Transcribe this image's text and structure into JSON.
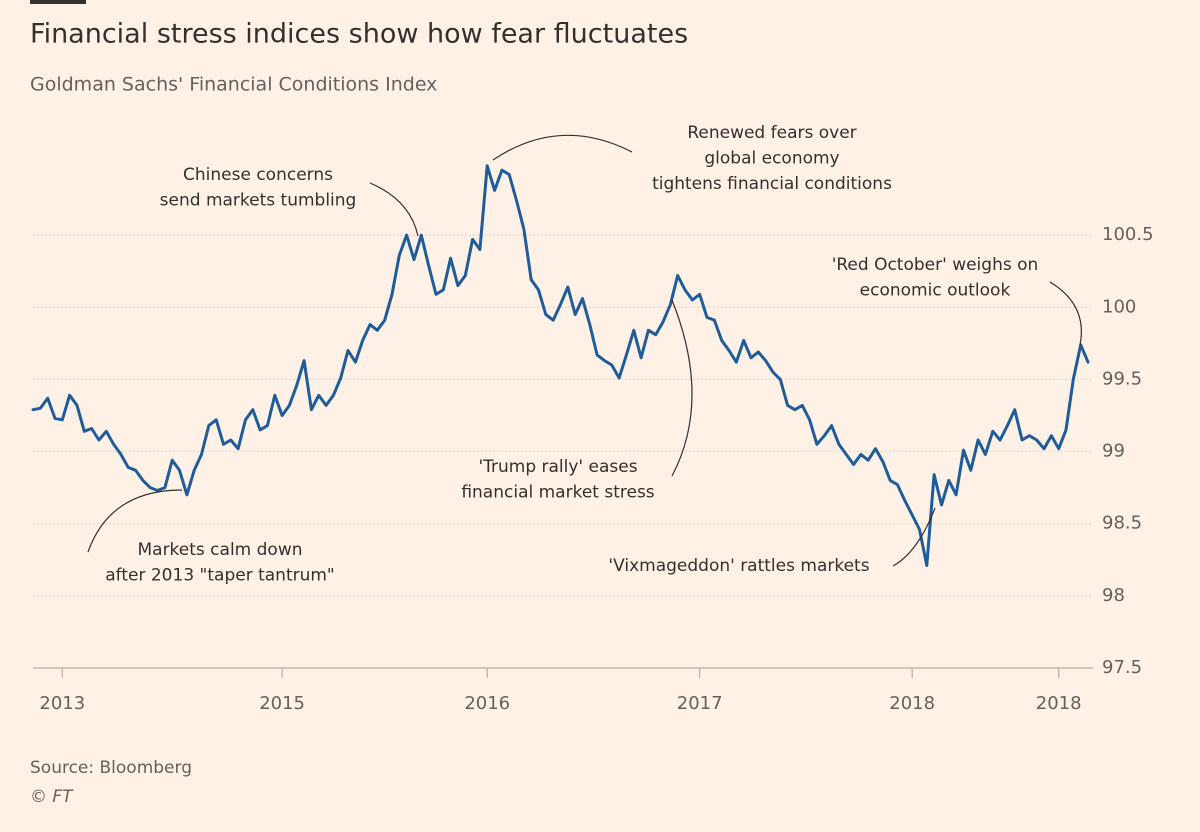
{
  "chart_data": {
    "type": "line",
    "title": "Financial stress indices show how fear fluctuates",
    "subtitle": "Goldman Sachs' Financial Conditions Index",
    "source": "Source: Bloomberg",
    "credit": "© FT",
    "color": "#1f5c99",
    "grid": true,
    "ylim": [
      97.5,
      101.05
    ],
    "yticks": [
      97.5,
      98,
      98.5,
      99,
      99.5,
      100,
      100.5
    ],
    "xlim": [
      0,
      144
    ],
    "xticks": [
      {
        "value": 4,
        "label": "2013"
      },
      {
        "value": 34,
        "label": "2015"
      },
      {
        "value": 62,
        "label": "2016"
      },
      {
        "value": 91,
        "label": "2017"
      },
      {
        "value": 120,
        "label": "2018"
      },
      {
        "value": 140,
        "label": "2018"
      }
    ],
    "values": [
      99.29,
      99.3,
      99.37,
      99.23,
      99.22,
      99.39,
      99.32,
      99.14,
      99.16,
      99.08,
      99.14,
      99.05,
      98.98,
      98.89,
      98.87,
      98.8,
      98.75,
      98.73,
      98.75,
      98.94,
      98.87,
      98.7,
      98.87,
      98.98,
      99.18,
      99.22,
      99.05,
      99.08,
      99.02,
      99.22,
      99.29,
      99.15,
      99.18,
      99.39,
      99.25,
      99.32,
      99.46,
      99.63,
      99.29,
      99.39,
      99.32,
      99.39,
      99.51,
      99.7,
      99.62,
      99.77,
      99.88,
      99.84,
      99.91,
      100.09,
      100.36,
      100.5,
      100.33,
      100.5,
      100.29,
      100.09,
      100.12,
      100.34,
      100.15,
      100.22,
      100.47,
      100.4,
      100.98,
      100.81,
      100.95,
      100.92,
      100.74,
      100.54,
      100.19,
      100.12,
      99.95,
      99.91,
      100.02,
      100.14,
      99.95,
      100.06,
      99.88,
      99.67,
      99.63,
      99.6,
      99.51,
      99.67,
      99.84,
      99.65,
      99.84,
      99.81,
      99.9,
      100.02,
      100.22,
      100.12,
      100.05,
      100.09,
      99.93,
      99.91,
      99.77,
      99.7,
      99.62,
      99.77,
      99.65,
      99.69,
      99.63,
      99.55,
      99.5,
      99.32,
      99.29,
      99.32,
      99.22,
      99.05,
      99.11,
      99.18,
      99.05,
      98.98,
      98.91,
      98.98,
      98.94,
      99.02,
      98.93,
      98.8,
      98.77,
      98.66,
      98.56,
      98.46,
      98.21,
      98.84,
      98.63,
      98.8,
      98.7,
      99.01,
      98.87,
      99.08,
      98.98,
      99.14,
      99.08,
      99.18,
      99.29,
      99.08,
      99.11,
      99.08,
      99.02,
      99.11,
      99.02,
      99.15,
      99.5,
      99.74,
      99.62
    ],
    "annotations": [
      {
        "lines": [
          "Chinese concerns",
          "send markets tumbling"
        ]
      },
      {
        "lines": [
          "Renewed fears over",
          "global economy",
          "tightens financial conditions"
        ]
      },
      {
        "lines": [
          "'Red October' weighs on",
          "economic outlook"
        ]
      },
      {
        "lines": [
          "Markets calm down",
          "after 2013 \"taper tantrum\""
        ]
      },
      {
        "lines": [
          "'Trump rally' eases",
          "financial market stress"
        ]
      },
      {
        "lines": [
          "'Vixmageddon' rattles markets"
        ]
      }
    ]
  }
}
